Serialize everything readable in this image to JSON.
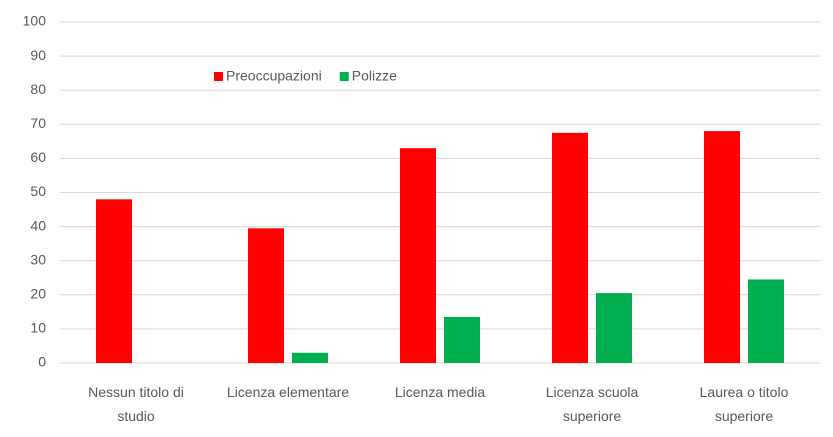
{
  "chart_data": {
    "type": "bar",
    "categories": [
      "Nessun titolo di studio",
      "Licenza elementare",
      "Licenza media",
      "Licenza scuola superiore",
      "Laurea o titolo superiore"
    ],
    "series": [
      {
        "name": "Preoccupazioni",
        "color": "#ff0000",
        "values": [
          48,
          39.5,
          63,
          67.5,
          68
        ]
      },
      {
        "name": "Polizze",
        "color": "#00b050",
        "values": [
          0,
          3,
          13.5,
          20.5,
          24.5
        ]
      }
    ],
    "ylim": [
      0,
      100
    ],
    "yticks": [
      0,
      10,
      20,
      30,
      40,
      50,
      60,
      70,
      80,
      90,
      100
    ],
    "grid": true,
    "legend": "top"
  }
}
